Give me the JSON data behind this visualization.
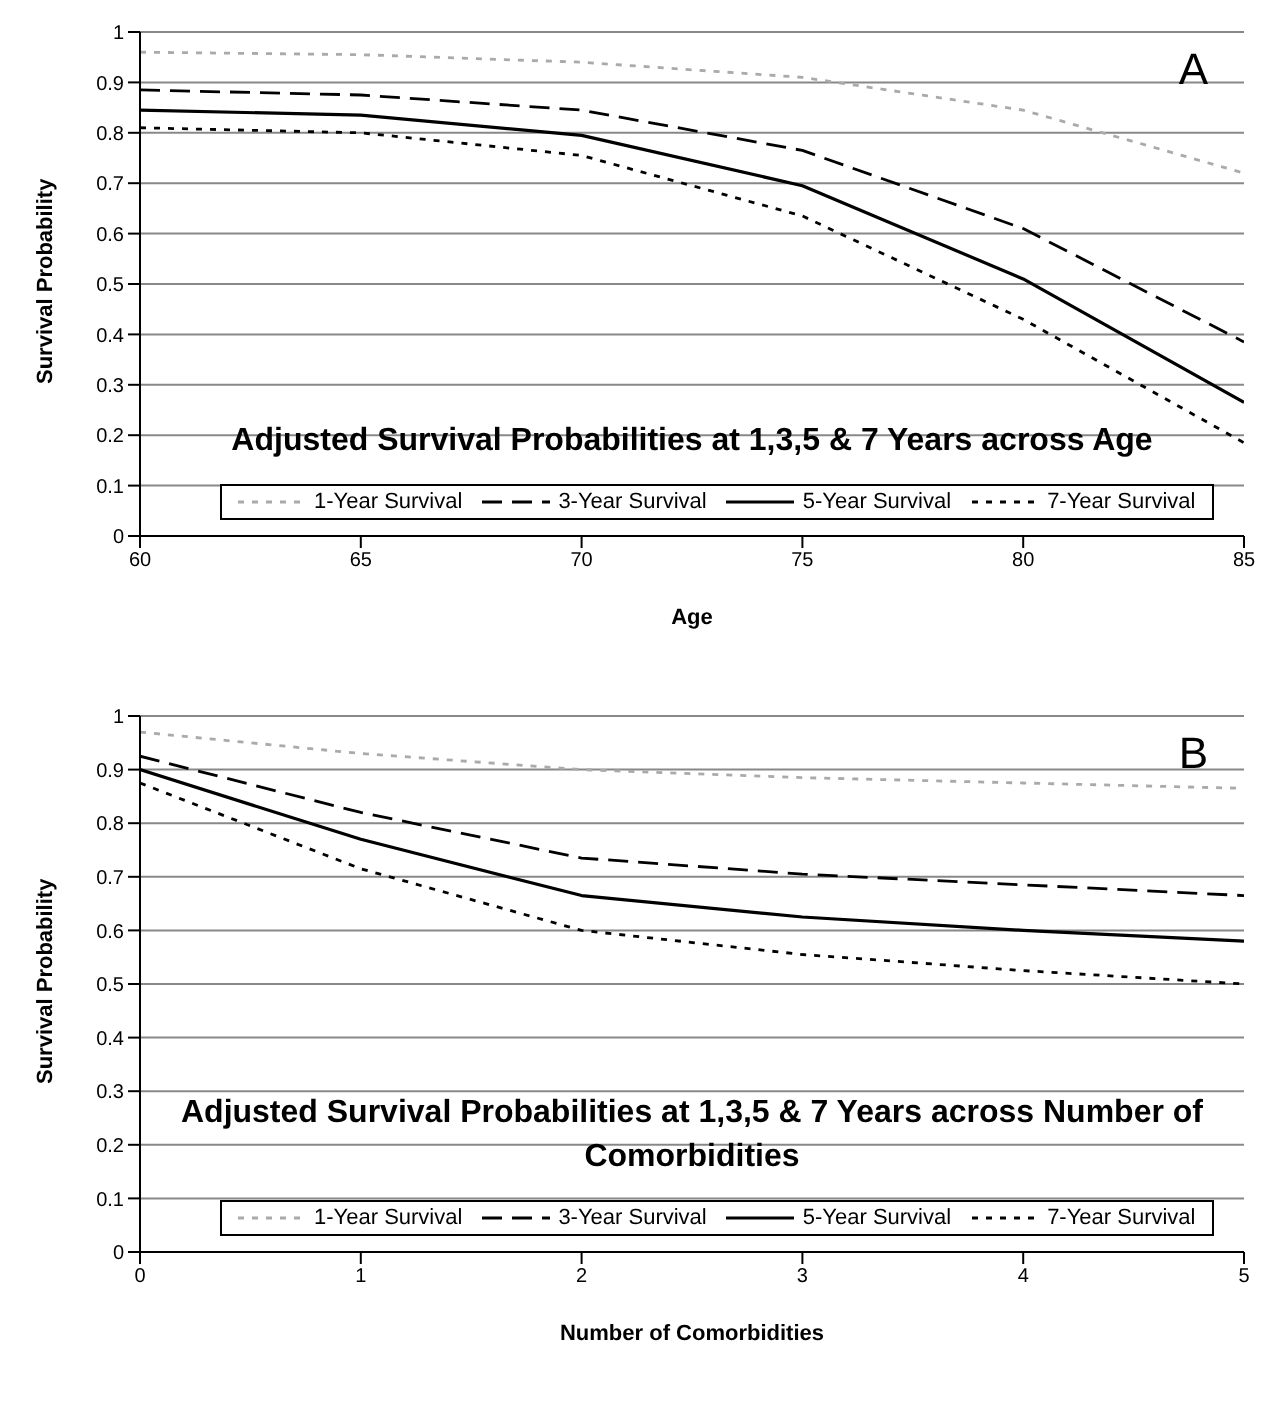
{
  "chart_data": [
    {
      "type": "line",
      "title": "Adjusted Survival Probabilities at 1,3,5 & 7 Years across Age",
      "xlabel": "Age",
      "ylabel": "Survival Probability",
      "annotations": [
        "A"
      ],
      "x": [
        60,
        65,
        70,
        75,
        80,
        85
      ],
      "xlim": [
        60,
        85
      ],
      "xticks": [
        60,
        65,
        70,
        75,
        80,
        85
      ],
      "ylim": [
        0,
        1
      ],
      "yticks": [
        0,
        0.1,
        0.2,
        0.3,
        0.4,
        0.5,
        0.6,
        0.7,
        0.8,
        0.9,
        1
      ],
      "grid": "y",
      "legend": "bottom",
      "marker": "none",
      "series": [
        {
          "name": "1-Year Survival",
          "color": "#aaaaaa",
          "line_style": "dotted",
          "values": [
            0.96,
            0.955,
            0.94,
            0.91,
            0.845,
            0.72
          ]
        },
        {
          "name": "3-Year Survival",
          "color": "#000000",
          "line_style": "dashed",
          "values": [
            0.885,
            0.875,
            0.845,
            0.765,
            0.61,
            0.385
          ]
        },
        {
          "name": "5-Year Survival",
          "color": "#000000",
          "line_style": "solid",
          "values": [
            0.845,
            0.835,
            0.795,
            0.695,
            0.51,
            0.265
          ]
        },
        {
          "name": "7-Year Survival",
          "color": "#000000",
          "line_style": "dotted",
          "values": [
            0.81,
            0.8,
            0.755,
            0.635,
            0.43,
            0.185
          ]
        }
      ]
    },
    {
      "type": "line",
      "title": "Adjusted Survival Probabilities at 1,3,5 & 7 Years across Number of Comorbidities",
      "xlabel": "Number of Comorbidities",
      "ylabel": "Survival Probability",
      "annotations": [
        "B"
      ],
      "x": [
        0,
        1,
        2,
        3,
        4,
        5
      ],
      "xlim": [
        0,
        5
      ],
      "xticks": [
        0,
        1,
        2,
        3,
        4,
        5
      ],
      "ylim": [
        0,
        1
      ],
      "yticks": [
        0,
        0.1,
        0.2,
        0.3,
        0.4,
        0.5,
        0.6,
        0.7,
        0.8,
        0.9,
        1
      ],
      "grid": "y",
      "legend": "bottom",
      "marker": "none",
      "series": [
        {
          "name": "1-Year Survival",
          "color": "#aaaaaa",
          "line_style": "dotted",
          "values": [
            0.97,
            0.93,
            0.9,
            0.885,
            0.875,
            0.865
          ]
        },
        {
          "name": "3-Year Survival",
          "color": "#000000",
          "line_style": "dashed",
          "values": [
            0.925,
            0.82,
            0.735,
            0.705,
            0.685,
            0.665
          ]
        },
        {
          "name": "5-Year Survival",
          "color": "#000000",
          "line_style": "solid",
          "values": [
            0.9,
            0.77,
            0.665,
            0.625,
            0.6,
            0.58
          ]
        },
        {
          "name": "7-Year Survival",
          "color": "#000000",
          "line_style": "dotted",
          "values": [
            0.875,
            0.715,
            0.6,
            0.555,
            0.525,
            0.5
          ]
        }
      ]
    }
  ]
}
